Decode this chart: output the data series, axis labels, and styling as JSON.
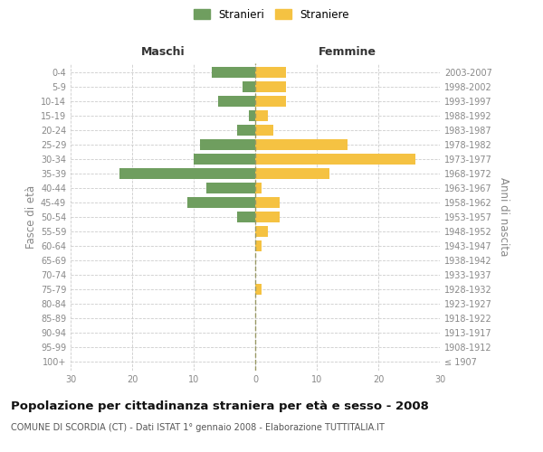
{
  "age_groups": [
    "100+",
    "95-99",
    "90-94",
    "85-89",
    "80-84",
    "75-79",
    "70-74",
    "65-69",
    "60-64",
    "55-59",
    "50-54",
    "45-49",
    "40-44",
    "35-39",
    "30-34",
    "25-29",
    "20-24",
    "15-19",
    "10-14",
    "5-9",
    "0-4"
  ],
  "birth_years": [
    "≤ 1907",
    "1908-1912",
    "1913-1917",
    "1918-1922",
    "1923-1927",
    "1928-1932",
    "1933-1937",
    "1938-1942",
    "1943-1947",
    "1948-1952",
    "1953-1957",
    "1958-1962",
    "1963-1967",
    "1968-1972",
    "1973-1977",
    "1978-1982",
    "1983-1987",
    "1988-1992",
    "1993-1997",
    "1998-2002",
    "2003-2007"
  ],
  "males": [
    0,
    0,
    0,
    0,
    0,
    0,
    0,
    0,
    0,
    0,
    3,
    11,
    8,
    22,
    10,
    9,
    3,
    1,
    6,
    2,
    7
  ],
  "females": [
    0,
    0,
    0,
    0,
    0,
    1,
    0,
    0,
    1,
    2,
    4,
    4,
    1,
    12,
    26,
    15,
    3,
    2,
    5,
    5,
    5
  ],
  "male_color": "#6f9e5f",
  "female_color": "#f5c242",
  "bar_height": 0.75,
  "xlim": 30,
  "title": "Popolazione per cittadinanza straniera per età e sesso - 2008",
  "subtitle": "COMUNE DI SCORDIA (CT) - Dati ISTAT 1° gennaio 2008 - Elaborazione TUTTITALIA.IT",
  "ylabel_left": "Fasce di età",
  "ylabel_right": "Anni di nascita",
  "xlabel_left": "Maschi",
  "xlabel_right": "Femmine",
  "legend_male": "Stranieri",
  "legend_female": "Straniere",
  "bg_color": "#ffffff",
  "grid_color": "#cccccc",
  "tick_color": "#888888",
  "dashed_line_color": "#999966",
  "title_fontsize": 9.5,
  "subtitle_fontsize": 7,
  "label_fontsize": 8.5,
  "tick_fontsize": 7,
  "legend_fontsize": 8.5,
  "maschi_femmine_fontsize": 9
}
